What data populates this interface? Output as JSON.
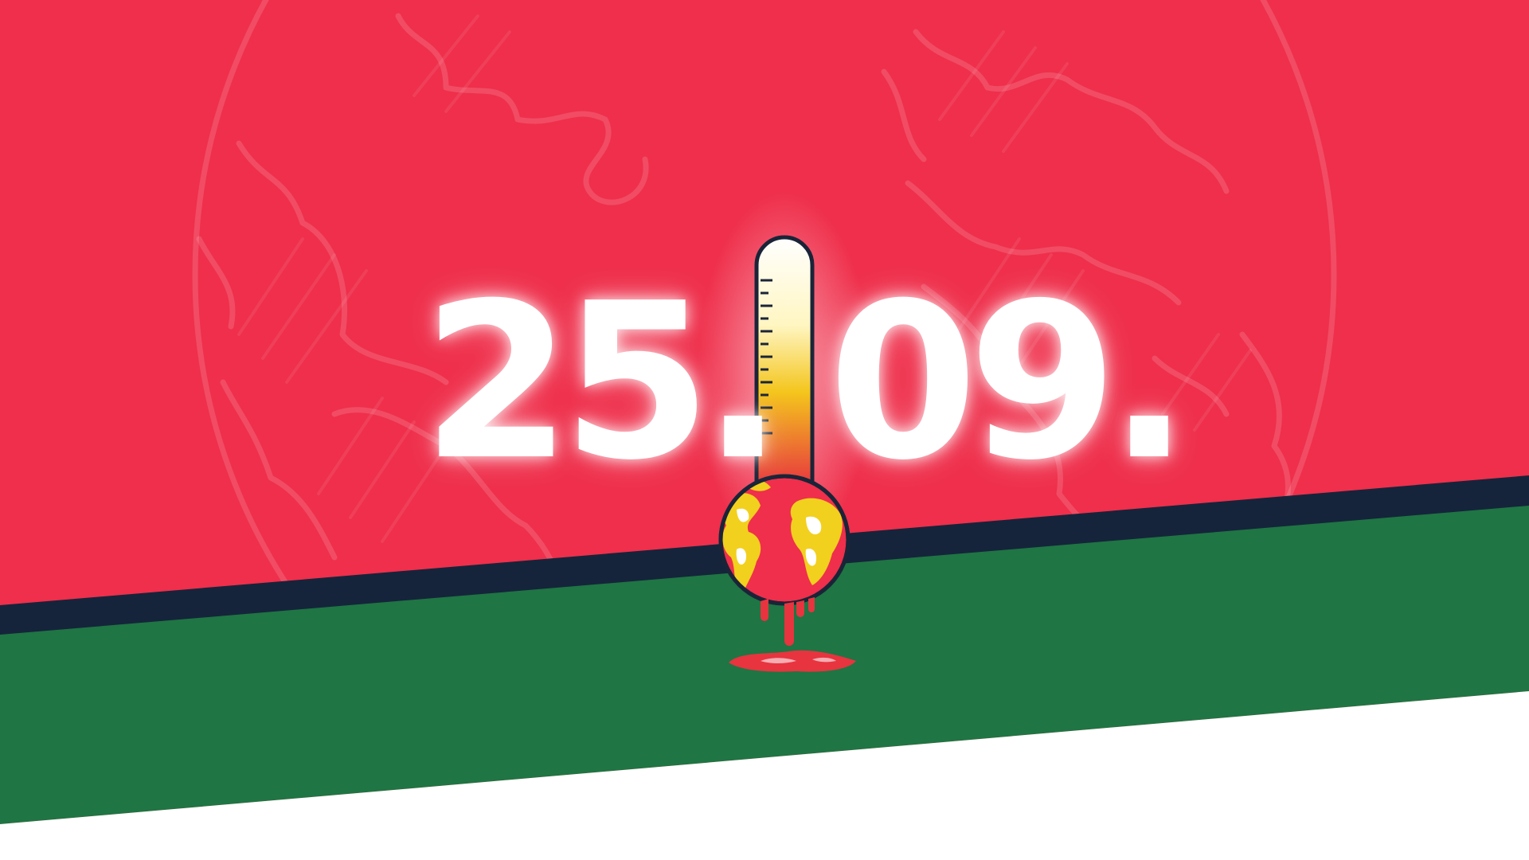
{
  "date": {
    "day": "25.",
    "month": "09."
  },
  "colors": {
    "red": "#ef2f4b",
    "navy": "#15243b",
    "green": "#1f7543",
    "white": "#ffffff",
    "mercury_top": "#ffffff",
    "mercury_mid": "#f4c51c",
    "mercury_bottom": "#e7343f",
    "continents": "#f2d01e"
  },
  "icons": [
    "sketched-globe-icon",
    "thermometer-icon",
    "melting-earth-icon"
  ]
}
